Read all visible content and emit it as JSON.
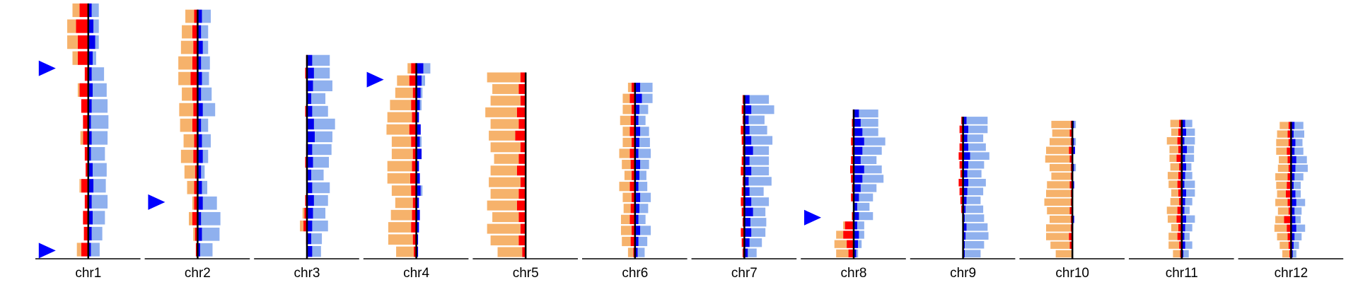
{
  "chart_data": {
    "type": "ideogram",
    "ylim": [
      0,
      250
    ],
    "xlim": [
      -50,
      50
    ],
    "colors": {
      "orange": "#f6b26b",
      "red": "#ff0000",
      "blue": "#0000ee",
      "lightblue": "#8fb0ee",
      "marker": "#0000ff"
    },
    "chromosomes": [
      {
        "name": "chr1",
        "length": 248,
        "markers": [
          63,
          240
        ],
        "orange": [
          8,
          10,
          12,
          6,
          0,
          2,
          0,
          0,
          3,
          0,
          0,
          2,
          0,
          0,
          0,
          5
        ],
        "red": [
          10,
          14,
          12,
          12,
          4,
          10,
          8,
          6,
          6,
          4,
          3,
          8,
          4,
          6,
          5,
          8
        ],
        "blue": [
          4,
          6,
          8,
          5,
          4,
          5,
          4,
          3,
          4,
          3,
          5,
          6,
          4,
          5,
          4,
          3
        ],
        "lightblue": [
          8,
          6,
          4,
          4,
          14,
          16,
          18,
          20,
          18,
          16,
          16,
          14,
          18,
          14,
          12,
          10
        ]
      },
      {
        "name": "chr2",
        "length": 242,
        "markers": [
          187
        ],
        "orange": [
          10,
          12,
          14,
          16,
          14,
          12,
          16,
          14,
          12,
          14,
          12,
          8,
          2,
          4,
          2,
          0
        ],
        "red": [
          4,
          6,
          5,
          6,
          8,
          6,
          5,
          6,
          4,
          5,
          3,
          4,
          4,
          6,
          3,
          2
        ],
        "blue": [
          5,
          4,
          6,
          4,
          5,
          4,
          6,
          4,
          5,
          6,
          4,
          5,
          6,
          4,
          5,
          3
        ],
        "lightblue": [
          10,
          8,
          6,
          10,
          8,
          12,
          14,
          8,
          10,
          6,
          4,
          6,
          16,
          22,
          20,
          14
        ]
      },
      {
        "name": "chr3",
        "length": 198,
        "markers": [],
        "orange": [
          0,
          0,
          0,
          0,
          0,
          0,
          0,
          0,
          0,
          0,
          0,
          0,
          2,
          4,
          0,
          0
        ],
        "red": [
          1,
          2,
          1,
          0,
          2,
          1,
          0,
          1,
          2,
          1,
          0,
          2,
          3,
          4,
          1,
          0
        ],
        "blue": [
          6,
          8,
          7,
          5,
          6,
          8,
          9,
          6,
          7,
          5,
          6,
          8,
          7,
          6,
          5,
          6
        ],
        "lightblue": [
          20,
          18,
          22,
          16,
          18,
          24,
          20,
          22,
          18,
          14,
          20,
          16,
          14,
          18,
          12,
          10
        ]
      },
      {
        "name": "chr4",
        "length": 190,
        "markers": [
          16
        ],
        "orange": [
          4,
          14,
          20,
          24,
          28,
          26,
          22,
          24,
          28,
          26,
          22,
          20,
          24,
          26,
          28,
          20
        ],
        "red": [
          6,
          8,
          4,
          6,
          5,
          8,
          6,
          4,
          5,
          7,
          6,
          4,
          5,
          6,
          4,
          3
        ],
        "blue": [
          8,
          6,
          5,
          4,
          3,
          5,
          4,
          6,
          3,
          4,
          5,
          3,
          4,
          3,
          2,
          2
        ],
        "lightblue": [
          8,
          4,
          2,
          2,
          0,
          0,
          2,
          0,
          0,
          0,
          2,
          0,
          0,
          0,
          0,
          0
        ]
      },
      {
        "name": "chr5",
        "length": 181,
        "markers": [],
        "orange": [
          38,
          30,
          34,
          36,
          32,
          30,
          34,
          28,
          30,
          36,
          32,
          34,
          30,
          38,
          32,
          28
        ],
        "red": [
          6,
          8,
          6,
          10,
          8,
          12,
          6,
          8,
          10,
          6,
          8,
          10,
          8,
          6,
          8,
          4
        ],
        "blue": [
          0,
          0,
          0,
          0,
          0,
          0,
          0,
          0,
          0,
          0,
          0,
          0,
          0,
          0,
          0,
          0
        ],
        "lightblue": [
          0,
          0,
          0,
          0,
          0,
          0,
          0,
          0,
          0,
          0,
          0,
          0,
          0,
          0,
          0,
          0
        ]
      },
      {
        "name": "chr6",
        "length": 171,
        "markers": [],
        "orange": [
          4,
          8,
          10,
          12,
          8,
          10,
          12,
          10,
          8,
          12,
          10,
          8,
          10,
          12,
          10,
          6
        ],
        "red": [
          4,
          6,
          4,
          5,
          6,
          4,
          6,
          5,
          4,
          6,
          4,
          5,
          6,
          4,
          5,
          2
        ],
        "blue": [
          6,
          8,
          5,
          4,
          6,
          5,
          4,
          6,
          5,
          4,
          6,
          5,
          4,
          6,
          4,
          3
        ],
        "lightblue": [
          14,
          12,
          10,
          8,
          10,
          12,
          14,
          10,
          8,
          10,
          12,
          10,
          8,
          12,
          10,
          8
        ]
      },
      {
        "name": "chr7",
        "length": 159,
        "markers": [],
        "orange": [
          0,
          0,
          0,
          0,
          0,
          0,
          0,
          0,
          0,
          0,
          0,
          0,
          0,
          0,
          0,
          0
        ],
        "red": [
          2,
          3,
          2,
          4,
          3,
          2,
          3,
          4,
          2,
          3,
          4,
          3,
          2,
          4,
          3,
          2
        ],
        "blue": [
          6,
          8,
          5,
          6,
          8,
          10,
          6,
          8,
          5,
          6,
          8,
          10,
          7,
          8,
          6,
          4
        ],
        "lightblue": [
          22,
          26,
          18,
          20,
          24,
          18,
          22,
          20,
          26,
          16,
          20,
          14,
          18,
          16,
          14,
          10
        ]
      },
      {
        "name": "chr8",
        "length": 145,
        "markers": [
          105
        ],
        "orange": [
          0,
          0,
          0,
          0,
          0,
          0,
          0,
          0,
          0,
          0,
          0,
          0,
          2,
          8,
          14,
          14
        ],
        "red": [
          1,
          2,
          2,
          3,
          2,
          3,
          4,
          3,
          2,
          3,
          0,
          2,
          10,
          12,
          8,
          6
        ],
        "blue": [
          6,
          8,
          10,
          12,
          10,
          8,
          12,
          10,
          8,
          6,
          4,
          6,
          4,
          6,
          5,
          3
        ],
        "lightblue": [
          22,
          20,
          18,
          24,
          22,
          18,
          20,
          24,
          18,
          16,
          14,
          16,
          8,
          6,
          4,
          2
        ]
      },
      {
        "name": "chr9",
        "length": 138,
        "markers": [],
        "orange": [
          0,
          0,
          0,
          0,
          0,
          0,
          0,
          0,
          0,
          0,
          0,
          0,
          0,
          0,
          0,
          0
        ],
        "red": [
          2,
          4,
          3,
          4,
          5,
          4,
          3,
          5,
          4,
          3,
          2,
          1,
          0,
          0,
          0,
          0
        ],
        "blue": [
          4,
          6,
          5,
          6,
          8,
          6,
          5,
          6,
          5,
          4,
          3,
          2,
          4,
          3,
          2,
          2
        ],
        "lightblue": [
          24,
          22,
          18,
          20,
          22,
          18,
          16,
          20,
          18,
          16,
          20,
          22,
          24,
          26,
          22,
          18
        ]
      },
      {
        "name": "chr10",
        "length": 134,
        "markers": [],
        "orange": [
          22,
          20,
          24,
          26,
          28,
          24,
          22,
          26,
          28,
          30,
          26,
          24,
          28,
          26,
          22,
          18
        ],
        "red": [
          2,
          3,
          2,
          4,
          3,
          2,
          2,
          3,
          2,
          2,
          3,
          2,
          2,
          4,
          3,
          1
        ],
        "blue": [
          2,
          1,
          2,
          3,
          1,
          2,
          1,
          2,
          1,
          0,
          1,
          2,
          1,
          0,
          0,
          0
        ],
        "lightblue": [
          2,
          0,
          2,
          0,
          0,
          2,
          0,
          0,
          0,
          0,
          0,
          0,
          0,
          0,
          0,
          0
        ]
      },
      {
        "name": "chr11",
        "length": 135,
        "markers": [],
        "orange": [
          10,
          8,
          12,
          10,
          8,
          10,
          12,
          10,
          8,
          10,
          12,
          10,
          8,
          10,
          12,
          8
        ],
        "red": [
          3,
          4,
          5,
          4,
          6,
          3,
          4,
          5,
          4,
          3,
          5,
          6,
          4,
          5,
          3,
          2
        ],
        "blue": [
          4,
          5,
          3,
          6,
          4,
          5,
          4,
          3,
          5,
          4,
          3,
          5,
          4,
          3,
          4,
          2
        ],
        "lightblue": [
          8,
          10,
          12,
          8,
          10,
          6,
          8,
          12,
          10,
          8,
          6,
          10,
          8,
          6,
          8,
          6
        ]
      },
      {
        "name": "chr12",
        "length": 133,
        "markers": [],
        "orange": [
          10,
          12,
          14,
          12,
          10,
          12,
          14,
          12,
          10,
          14,
          12,
          10,
          14,
          12,
          10,
          8
        ],
        "red": [
          3,
          4,
          3,
          5,
          4,
          3,
          4,
          5,
          6,
          4,
          3,
          8,
          5,
          4,
          3,
          2
        ],
        "blue": [
          4,
          3,
          5,
          4,
          6,
          5,
          4,
          3,
          5,
          6,
          4,
          5,
          6,
          4,
          3,
          2
        ],
        "lightblue": [
          10,
          12,
          8,
          10,
          12,
          14,
          10,
          8,
          6,
          10,
          8,
          6,
          10,
          8,
          6,
          4
        ]
      }
    ]
  }
}
